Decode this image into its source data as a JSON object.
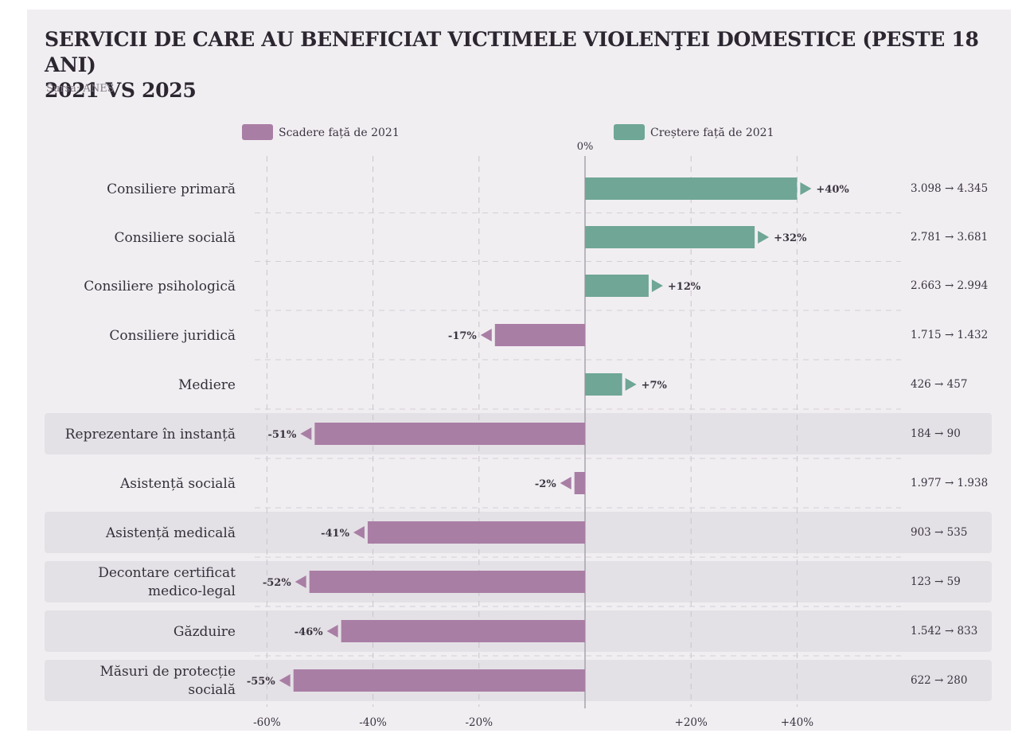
{
  "title_line1": "SERVICII DE CARE AU BENEFICIAT VICTIMELE VIOLENŢEI DOMESTICE (PESTE 18 ANI)",
  "title_line2": "2021 VS 2025",
  "source": "Sursa: ANES",
  "colors": {
    "decrease": "#a97ea5",
    "increase": "#6fa696",
    "highlight_row": "#e4e1e6",
    "background": "#f1eef2"
  },
  "chart_data": {
    "type": "bar",
    "orientation": "horizontal",
    "zero_label": "0%",
    "xlim": [
      -60,
      40
    ],
    "ticks": [
      "-60%",
      "-40%",
      "-20%",
      "+20%",
      "+40%"
    ],
    "tick_values": [
      -60,
      -40,
      -20,
      20,
      40
    ],
    "legend": [
      {
        "name": "Scadere față de 2021",
        "color": "#a97ea5"
      },
      {
        "name": "Creștere față de 2021",
        "color": "#6fa696"
      }
    ],
    "rows": [
      {
        "label": [
          "Consiliere primară"
        ],
        "change": 40,
        "change_label": "+40%",
        "values": "3.098 → 4.345",
        "highlight": false
      },
      {
        "label": [
          "Consiliere socială"
        ],
        "change": 32,
        "change_label": "+32%",
        "values": "2.781 → 3.681",
        "highlight": false
      },
      {
        "label": [
          "Consiliere psihologică"
        ],
        "change": 12,
        "change_label": "+12%",
        "values": "2.663 → 2.994",
        "highlight": false
      },
      {
        "label": [
          "Consiliere juridică"
        ],
        "change": -17,
        "change_label": "-17%",
        "values": "1.715 → 1.432",
        "highlight": false
      },
      {
        "label": [
          "Mediere"
        ],
        "change": 7,
        "change_label": "+7%",
        "values": "426 → 457",
        "highlight": false
      },
      {
        "label": [
          "Reprezentare în instanță"
        ],
        "change": -51,
        "change_label": "-51%",
        "values": "184 → 90",
        "highlight": true
      },
      {
        "label": [
          "Asistență socială"
        ],
        "change": -2,
        "change_label": "-2%",
        "values": "1.977 → 1.938",
        "highlight": false
      },
      {
        "label": [
          "Asistență medicală"
        ],
        "change": -41,
        "change_label": "-41%",
        "values": "903 → 535",
        "highlight": true
      },
      {
        "label": [
          "Decontare certificat",
          "medico-legal"
        ],
        "change": -52,
        "change_label": "-52%",
        "values": "123 → 59",
        "highlight": true
      },
      {
        "label": [
          "Găzduire"
        ],
        "change": -46,
        "change_label": "-46%",
        "values": "1.542 → 833",
        "highlight": true
      },
      {
        "label": [
          "Măsuri de protecție",
          "socială"
        ],
        "change": -55,
        "change_label": "-55%",
        "values": "622 → 280",
        "highlight": true
      }
    ]
  }
}
